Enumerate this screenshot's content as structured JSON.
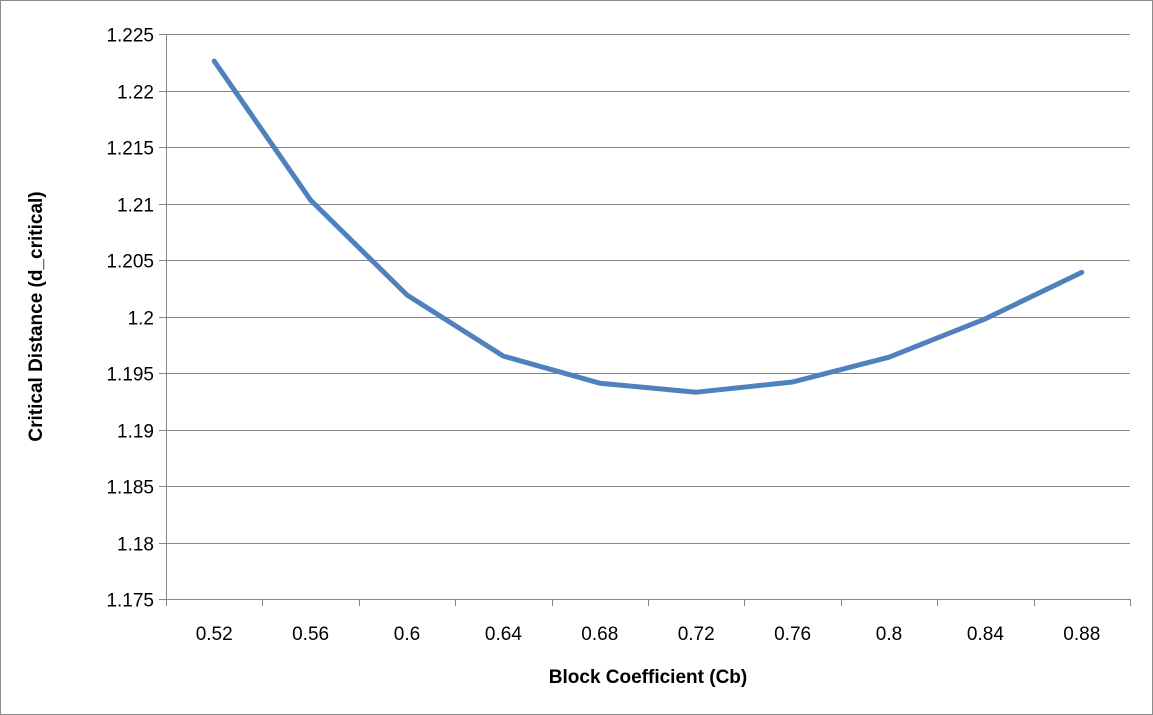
{
  "chart_data": {
    "type": "line",
    "title": "",
    "xlabel": "Block Coefficient (Cb)",
    "ylabel": "Critical Distance (d_critical)",
    "categories": [
      "0.52",
      "0.56",
      "0.6",
      "0.64",
      "0.68",
      "0.72",
      "0.76",
      "0.8",
      "0.84",
      "0.88"
    ],
    "series": [
      {
        "values": [
          1.2226,
          1.2103,
          1.2019,
          1.1965,
          1.1941,
          1.1933,
          1.1942,
          1.1964,
          1.1998,
          1.2039
        ]
      }
    ],
    "ylim": [
      1.175,
      1.225
    ],
    "yticks": [
      "1.175",
      "1.18",
      "1.185",
      "1.19",
      "1.195",
      "1.2",
      "1.205",
      "1.21",
      "1.215",
      "1.22",
      "1.225"
    ],
    "grid": true,
    "legend": "none",
    "colors": {
      "line": "#4F81BD",
      "grid": "#868686",
      "axis": "#868686"
    }
  }
}
